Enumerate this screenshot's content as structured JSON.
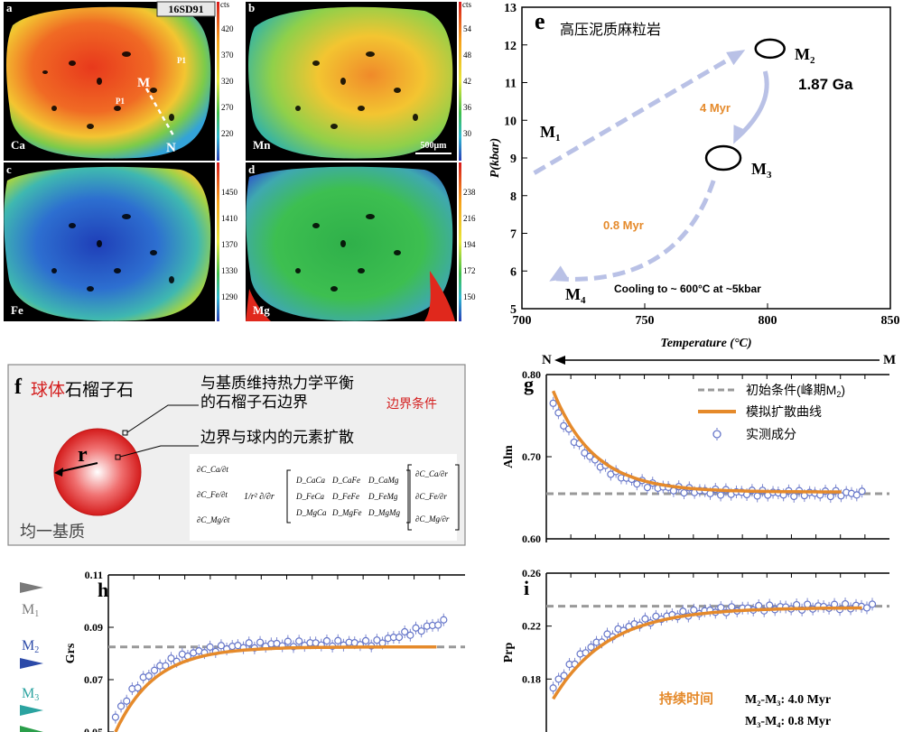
{
  "maps": {
    "sample": "16SD91",
    "unit": "cts",
    "scale_bar": "500μm",
    "panels": [
      {
        "letter": "a",
        "element": "Ca",
        "ticks": [
          "420",
          "370",
          "320",
          "270",
          "220"
        ],
        "markers": {
          "M": "M",
          "N": "N",
          "P1a": "P1",
          "P1b": "P1"
        }
      },
      {
        "letter": "b",
        "element": "Mn",
        "ticks": [
          "54",
          "48",
          "42",
          "36",
          "30"
        ]
      },
      {
        "letter": "c",
        "element": "Fe",
        "ticks": [
          "1450",
          "1410",
          "1370",
          "1330",
          "1290"
        ]
      },
      {
        "letter": "d",
        "element": "Mg",
        "ticks": [
          "238",
          "216",
          "194",
          "172",
          "150"
        ]
      }
    ],
    "colors": {
      "high": "#e63a1e",
      "mid": "#f3c531",
      "low": "#2d5fc4",
      "green": "#3fbf4a",
      "background": "#000000"
    }
  },
  "panel_e": {
    "letter": "e",
    "rock": "高压泥质麻粒岩",
    "stages": {
      "M1": "M",
      "M1_sub": "1",
      "M2": "M",
      "M2_sub": "2",
      "M3": "M",
      "M3_sub": "3",
      "M4": "M",
      "M4_sub": "4"
    },
    "age": "1.87 Ga",
    "d1": "4 Myr",
    "d2": "0.8 Myr",
    "cooling": "Cooling to ~ 600°C at ~5kbar",
    "colors": {
      "arrow": "#b9c1e6",
      "accent": "#e58a2b"
    }
  },
  "panel_f": {
    "letter": "f",
    "title_red": "球体",
    "title_black": "石榴子石",
    "boundary_line1": "与基质维持热力学平衡",
    "boundary_line2": "的石榴子石边界",
    "boundary_condition": "边界条件",
    "diffusion": "边界与球内的元素扩散",
    "radius": "r",
    "matrix": "均一基质",
    "eq_lhs": [
      "∂C_Ca/∂t",
      "∂C_Fe/∂t",
      "∂C_Mg/∂t"
    ],
    "eq_factor": "1/r² ∂/∂r",
    "eq_matrix": [
      [
        "D_CaCa",
        "D_CaFe",
        "D_CaMg"
      ],
      [
        "D_FeCa",
        "D_FeFe",
        "D_FeMg"
      ],
      [
        "D_MgCa",
        "D_MgFe",
        "D_MgMg"
      ]
    ],
    "eq_rhs": [
      "∂C_Ca/∂r",
      "∂C_Fe/∂r",
      "∂C_Mg/∂r"
    ]
  },
  "legend": {
    "N": "N",
    "M": "M",
    "initial": "初始条件(峰期M",
    "initial_sub": "2",
    "initial_end": ")",
    "model": "模拟扩散曲线",
    "measured": "实测成分"
  },
  "duration": {
    "label": "持续时间",
    "m2m3": "M₂-M₃:  4.0 Myr",
    "m3m4": "M₃-M₄:  0.8 Myr"
  },
  "side_markers": [
    {
      "label": "M",
      "sub": "1",
      "color": "#7a7a7a"
    },
    {
      "label": "M",
      "sub": "2",
      "color": "#2c4aa8"
    },
    {
      "label": "M",
      "sub": "3",
      "color": "#2ba3a0"
    }
  ],
  "chart_data": [
    {
      "type": "line",
      "panel": "e",
      "xlabel": "Temperature (°C)",
      "ylabel": "P(kbar)",
      "xlim": [
        700,
        850
      ],
      "ylim": [
        5,
        13
      ],
      "x_ticks": [
        "700",
        "750",
        "800",
        "850"
      ],
      "y_ticks": [
        "5",
        "6",
        "7",
        "8",
        "9",
        "10",
        "11",
        "12",
        "13"
      ],
      "points": [
        {
          "name": "M2",
          "x": 801,
          "y": 11.9
        },
        {
          "name": "M3",
          "x": 782,
          "y": 9.0
        }
      ],
      "paths": [
        {
          "from": [
            705,
            8.6
          ],
          "to": [
            789,
            11.8
          ]
        },
        {
          "from": [
            799,
            11.3
          ],
          "to": [
            787,
            9.5
          ]
        },
        {
          "from": [
            778,
            8.4
          ],
          "to": [
            713,
            5.8
          ]
        }
      ]
    },
    {
      "type": "scatter",
      "panel": "g",
      "ylabel": "Alm",
      "ylim": [
        0.6,
        0.8
      ],
      "y_ticks": [
        "0.60",
        "0.70",
        "0.80"
      ],
      "initial": 0.655,
      "model": {
        "x0": 0.0,
        "x1": 0.84,
        "start": 0.78,
        "end": 0.657,
        "tau": 0.12
      },
      "measured": {
        "n": 60,
        "start": 0.785,
        "end": 0.655,
        "tau": 0.12,
        "x_end": 0.92
      }
    },
    {
      "type": "scatter",
      "panel": "h",
      "ylabel": "Grs",
      "ylim": [
        0.05,
        0.11
      ],
      "y_ticks": [
        "0.05",
        "0.07",
        "0.09",
        "0.11"
      ],
      "initial": 0.0825,
      "model": {
        "x0": 0.0,
        "x1": 0.9,
        "start": 0.05,
        "end": 0.0825,
        "tau": 0.11
      },
      "measured": {
        "n": 60,
        "start": 0.05,
        "end": 0.084,
        "tau": 0.11,
        "x_end": 0.94,
        "tail_rise": 0.008
      }
    },
    {
      "type": "scatter",
      "panel": "i",
      "ylabel": "Prp",
      "ylim": [
        0.14,
        0.26
      ],
      "y_ticks": [
        "0.18",
        "0.22",
        "0.26"
      ],
      "initial": 0.235,
      "model": {
        "x0": 0.0,
        "x1": 0.9,
        "start": 0.165,
        "end": 0.234,
        "tau": 0.16
      },
      "measured": {
        "n": 60,
        "start": 0.165,
        "end": 0.235,
        "tau": 0.16,
        "x_end": 0.95
      }
    }
  ]
}
